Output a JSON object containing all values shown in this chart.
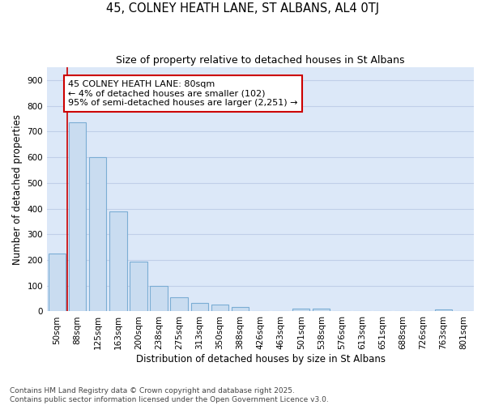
{
  "title": "45, COLNEY HEATH LANE, ST ALBANS, AL4 0TJ",
  "subtitle": "Size of property relative to detached houses in St Albans",
  "xlabel": "Distribution of detached houses by size in St Albans",
  "ylabel": "Number of detached properties",
  "categories": [
    "50sqm",
    "88sqm",
    "125sqm",
    "163sqm",
    "200sqm",
    "238sqm",
    "275sqm",
    "313sqm",
    "350sqm",
    "388sqm",
    "426sqm",
    "463sqm",
    "501sqm",
    "538sqm",
    "576sqm",
    "613sqm",
    "651sqm",
    "688sqm",
    "726sqm",
    "763sqm",
    "801sqm"
  ],
  "values": [
    225,
    735,
    600,
    390,
    193,
    100,
    55,
    32,
    26,
    18,
    0,
    0,
    12,
    12,
    0,
    0,
    0,
    0,
    0,
    8,
    0
  ],
  "bar_color": "#c9dcf0",
  "bar_edge_color": "#7badd4",
  "annotation_box_text": "45 COLNEY HEATH LANE: 80sqm\n← 4% of detached houses are smaller (102)\n95% of semi-detached houses are larger (2,251) →",
  "annotation_box_color": "#ffffff",
  "annotation_box_edge_color": "#cc0000",
  "vline_color": "#cc0000",
  "grid_color": "#c0cfe8",
  "plot_bg_color": "#dce8f8",
  "fig_bg_color": "#ffffff",
  "ylim": [
    0,
    950
  ],
  "yticks": [
    0,
    100,
    200,
    300,
    400,
    500,
    600,
    700,
    800,
    900
  ],
  "footnote1": "Contains HM Land Registry data © Crown copyright and database right 2025.",
  "footnote2": "Contains public sector information licensed under the Open Government Licence v3.0.",
  "title_fontsize": 10.5,
  "subtitle_fontsize": 9,
  "axis_label_fontsize": 8.5,
  "tick_fontsize": 7.5,
  "annotation_fontsize": 8,
  "footnote_fontsize": 6.5
}
